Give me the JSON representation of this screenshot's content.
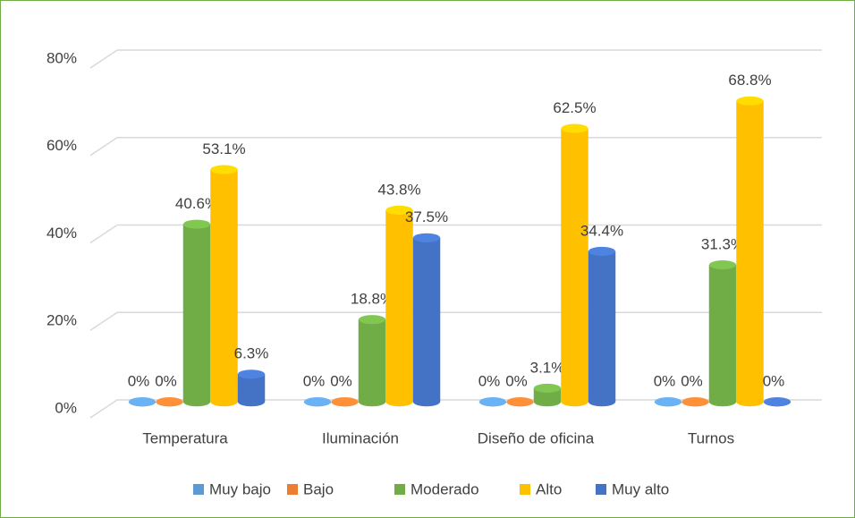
{
  "chart_data": {
    "type": "bar3d",
    "categories": [
      "Temperatura",
      "Iluminación",
      "Diseño de oficina",
      "Turnos"
    ],
    "series": [
      {
        "name": "Muy bajo",
        "color": "#5b9bd5",
        "values": [
          0,
          0,
          0,
          0
        ],
        "value_labels": [
          "0%",
          "0%",
          "0%",
          "0%"
        ]
      },
      {
        "name": "Bajo",
        "color": "#ed7d31",
        "values": [
          0,
          0,
          0,
          0
        ],
        "value_labels": [
          "0%",
          "0%",
          "0%",
          "0%"
        ]
      },
      {
        "name": "Moderado",
        "color": "#70ad47",
        "values": [
          40.6,
          18.8,
          3.1,
          31.3
        ],
        "value_labels": [
          "40.6%",
          "18.8%",
          "3.1%",
          "31.3%"
        ]
      },
      {
        "name": "Alto",
        "color": "#ffc000",
        "values": [
          53.1,
          43.8,
          62.5,
          68.8
        ],
        "value_labels": [
          "53.1%",
          "43.8%",
          "62.5%",
          "68.8%"
        ]
      },
      {
        "name": "Muy alto",
        "color": "#4472c4",
        "values": [
          6.3,
          37.5,
          34.4,
          0
        ],
        "value_labels": [
          "6.3%",
          "37.5%",
          "34.4%",
          "0%"
        ]
      }
    ],
    "ylim": [
      0,
      80
    ],
    "yticks": [
      {
        "value": 0,
        "label": "0%"
      },
      {
        "value": 20,
        "label": "20%"
      },
      {
        "value": 40,
        "label": "40%"
      },
      {
        "value": 60,
        "label": "60%"
      },
      {
        "value": 80,
        "label": "80%"
      }
    ],
    "grid": true,
    "legend": "bottom"
  }
}
